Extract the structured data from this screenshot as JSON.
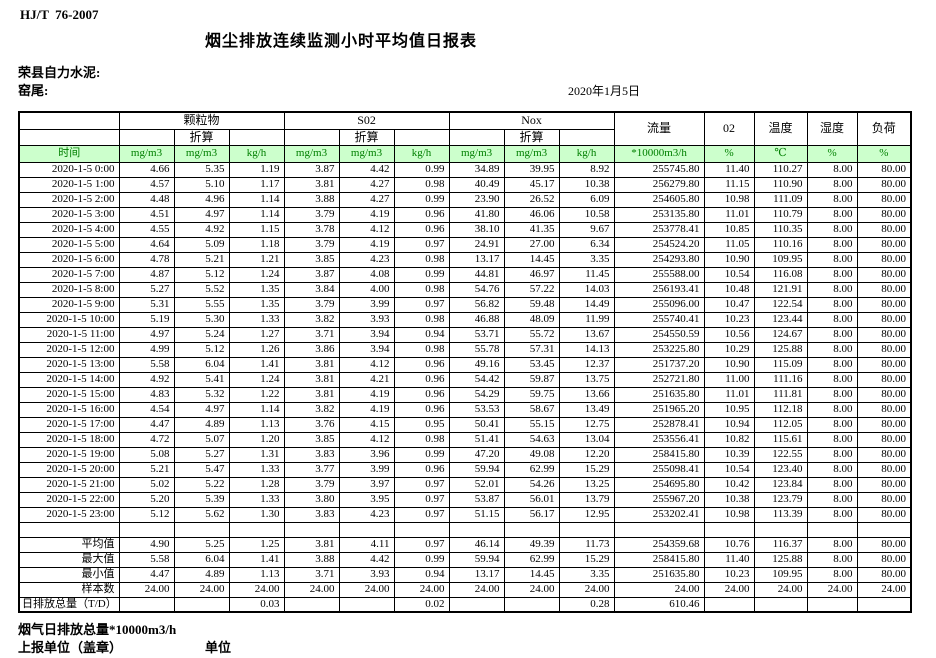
{
  "page": {
    "standard": "HJ/T  76-2007",
    "title": "烟尘排放连续监测小时平均值日报表",
    "company": "荣县自力水泥:",
    "location": "窑尾:",
    "date": "2020年1月5日"
  },
  "colors": {
    "header_bg": "#ccffcc",
    "header_text": "#008000"
  },
  "table": {
    "header": {
      "time_label": "时间",
      "groups": [
        {
          "label": "颗粒物",
          "sub": "折算",
          "units": [
            "mg/m3",
            "mg/m3",
            "kg/h"
          ]
        },
        {
          "label": "S02",
          "sub": "折算",
          "units": [
            "mg/m3",
            "mg/m3",
            "kg/h"
          ]
        },
        {
          "label": "Nox",
          "sub": "折算",
          "units": [
            "mg/m3",
            "mg/m3",
            "kg/h"
          ]
        }
      ],
      "singles": [
        {
          "label": "流量",
          "unit": "*10000m3/h"
        },
        {
          "label": "02",
          "unit": "%"
        },
        {
          "label": "温度",
          "unit": "℃"
        },
        {
          "label": "湿度",
          "unit": "%"
        },
        {
          "label": "负荷",
          "unit": "%"
        }
      ]
    },
    "rows": [
      {
        "time": "2020-1-5 0:00",
        "values": [
          "4.66",
          "5.35",
          "1.19",
          "3.87",
          "4.42",
          "0.99",
          "34.89",
          "39.95",
          "8.92",
          "255745.80",
          "11.40",
          "110.27",
          "8.00",
          "80.00"
        ]
      },
      {
        "time": "2020-1-5 1:00",
        "values": [
          "4.57",
          "5.10",
          "1.17",
          "3.81",
          "4.27",
          "0.98",
          "40.49",
          "45.17",
          "10.38",
          "256279.80",
          "11.15",
          "110.90",
          "8.00",
          "80.00"
        ]
      },
      {
        "time": "2020-1-5 2:00",
        "values": [
          "4.48",
          "4.96",
          "1.14",
          "3.88",
          "4.27",
          "0.99",
          "23.90",
          "26.52",
          "6.09",
          "254605.80",
          "10.98",
          "111.09",
          "8.00",
          "80.00"
        ]
      },
      {
        "time": "2020-1-5 3:00",
        "values": [
          "4.51",
          "4.97",
          "1.14",
          "3.79",
          "4.19",
          "0.96",
          "41.80",
          "46.06",
          "10.58",
          "253135.80",
          "11.01",
          "110.79",
          "8.00",
          "80.00"
        ]
      },
      {
        "time": "2020-1-5 4:00",
        "values": [
          "4.55",
          "4.92",
          "1.15",
          "3.78",
          "4.12",
          "0.96",
          "38.10",
          "41.35",
          "9.67",
          "253778.41",
          "10.85",
          "110.35",
          "8.00",
          "80.00"
        ]
      },
      {
        "time": "2020-1-5 5:00",
        "values": [
          "4.64",
          "5.09",
          "1.18",
          "3.79",
          "4.19",
          "0.97",
          "24.91",
          "27.00",
          "6.34",
          "254524.20",
          "11.05",
          "110.16",
          "8.00",
          "80.00"
        ]
      },
      {
        "time": "2020-1-5 6:00",
        "values": [
          "4.78",
          "5.21",
          "1.21",
          "3.85",
          "4.23",
          "0.98",
          "13.17",
          "14.45",
          "3.35",
          "254293.80",
          "10.90",
          "109.95",
          "8.00",
          "80.00"
        ]
      },
      {
        "time": "2020-1-5 7:00",
        "values": [
          "4.87",
          "5.12",
          "1.24",
          "3.87",
          "4.08",
          "0.99",
          "44.81",
          "46.97",
          "11.45",
          "255588.00",
          "10.54",
          "116.08",
          "8.00",
          "80.00"
        ]
      },
      {
        "time": "2020-1-5 8:00",
        "values": [
          "5.27",
          "5.52",
          "1.35",
          "3.84",
          "4.00",
          "0.98",
          "54.76",
          "57.22",
          "14.03",
          "256193.41",
          "10.48",
          "121.91",
          "8.00",
          "80.00"
        ]
      },
      {
        "time": "2020-1-5 9:00",
        "values": [
          "5.31",
          "5.55",
          "1.35",
          "3.79",
          "3.99",
          "0.97",
          "56.82",
          "59.48",
          "14.49",
          "255096.00",
          "10.47",
          "122.54",
          "8.00",
          "80.00"
        ]
      },
      {
        "time": "2020-1-5 10:00",
        "values": [
          "5.19",
          "5.30",
          "1.33",
          "3.82",
          "3.93",
          "0.98",
          "46.88",
          "48.09",
          "11.99",
          "255740.41",
          "10.23",
          "123.44",
          "8.00",
          "80.00"
        ]
      },
      {
        "time": "2020-1-5 11:00",
        "values": [
          "4.97",
          "5.24",
          "1.27",
          "3.71",
          "3.94",
          "0.94",
          "53.71",
          "55.72",
          "13.67",
          "254550.59",
          "10.56",
          "124.67",
          "8.00",
          "80.00"
        ]
      },
      {
        "time": "2020-1-5 12:00",
        "values": [
          "4.99",
          "5.12",
          "1.26",
          "3.86",
          "3.94",
          "0.98",
          "55.78",
          "57.31",
          "14.13",
          "253225.80",
          "10.29",
          "125.88",
          "8.00",
          "80.00"
        ]
      },
      {
        "time": "2020-1-5 13:00",
        "values": [
          "5.58",
          "6.04",
          "1.41",
          "3.81",
          "4.12",
          "0.96",
          "49.16",
          "53.45",
          "12.37",
          "251737.20",
          "10.90",
          "115.09",
          "8.00",
          "80.00"
        ]
      },
      {
        "time": "2020-1-5 14:00",
        "values": [
          "4.92",
          "5.41",
          "1.24",
          "3.81",
          "4.21",
          "0.96",
          "54.42",
          "59.87",
          "13.75",
          "252721.80",
          "11.00",
          "111.16",
          "8.00",
          "80.00"
        ]
      },
      {
        "time": "2020-1-5 15:00",
        "values": [
          "4.83",
          "5.32",
          "1.22",
          "3.81",
          "4.19",
          "0.96",
          "54.29",
          "59.75",
          "13.66",
          "251635.80",
          "11.01",
          "111.81",
          "8.00",
          "80.00"
        ]
      },
      {
        "time": "2020-1-5 16:00",
        "values": [
          "4.54",
          "4.97",
          "1.14",
          "3.82",
          "4.19",
          "0.96",
          "53.53",
          "58.67",
          "13.49",
          "251965.20",
          "10.95",
          "112.18",
          "8.00",
          "80.00"
        ]
      },
      {
        "time": "2020-1-5 17:00",
        "values": [
          "4.47",
          "4.89",
          "1.13",
          "3.76",
          "4.15",
          "0.95",
          "50.41",
          "55.15",
          "12.75",
          "252878.41",
          "10.94",
          "112.05",
          "8.00",
          "80.00"
        ]
      },
      {
        "time": "2020-1-5 18:00",
        "values": [
          "4.72",
          "5.07",
          "1.20",
          "3.85",
          "4.12",
          "0.98",
          "51.41",
          "54.63",
          "13.04",
          "253556.41",
          "10.82",
          "115.61",
          "8.00",
          "80.00"
        ]
      },
      {
        "time": "2020-1-5 19:00",
        "values": [
          "5.08",
          "5.27",
          "1.31",
          "3.83",
          "3.96",
          "0.99",
          "47.20",
          "49.08",
          "12.20",
          "258415.80",
          "10.39",
          "122.55",
          "8.00",
          "80.00"
        ]
      },
      {
        "time": "2020-1-5 20:00",
        "values": [
          "5.21",
          "5.47",
          "1.33",
          "3.77",
          "3.99",
          "0.96",
          "59.94",
          "62.99",
          "15.29",
          "255098.41",
          "10.54",
          "123.40",
          "8.00",
          "80.00"
        ]
      },
      {
        "time": "2020-1-5 21:00",
        "values": [
          "5.02",
          "5.22",
          "1.28",
          "3.79",
          "3.97",
          "0.97",
          "52.01",
          "54.26",
          "13.25",
          "254695.80",
          "10.42",
          "123.84",
          "8.00",
          "80.00"
        ]
      },
      {
        "time": "2020-1-5 22:00",
        "values": [
          "5.20",
          "5.39",
          "1.33",
          "3.80",
          "3.95",
          "0.97",
          "53.87",
          "56.01",
          "13.79",
          "255967.20",
          "10.38",
          "123.79",
          "8.00",
          "80.00"
        ]
      },
      {
        "time": "2020-1-5 23:00",
        "values": [
          "5.12",
          "5.62",
          "1.30",
          "3.83",
          "4.23",
          "0.97",
          "51.15",
          "56.17",
          "12.95",
          "253202.41",
          "10.98",
          "113.39",
          "8.00",
          "80.00"
        ]
      }
    ],
    "summary_rows": [
      {
        "label": "平均值",
        "values": [
          "4.90",
          "5.25",
          "1.25",
          "3.81",
          "4.11",
          "0.97",
          "46.14",
          "49.39",
          "11.73",
          "254359.68",
          "10.76",
          "116.37",
          "8.00",
          "80.00"
        ]
      },
      {
        "label": "最大值",
        "values": [
          "5.58",
          "6.04",
          "1.41",
          "3.88",
          "4.42",
          "0.99",
          "59.94",
          "62.99",
          "15.29",
          "258415.80",
          "11.40",
          "125.88",
          "8.00",
          "80.00"
        ]
      },
      {
        "label": "最小值",
        "values": [
          "4.47",
          "4.89",
          "1.13",
          "3.71",
          "3.93",
          "0.94",
          "13.17",
          "14.45",
          "3.35",
          "251635.80",
          "10.23",
          "109.95",
          "8.00",
          "80.00"
        ]
      },
      {
        "label": "样本数",
        "values": [
          "24.00",
          "24.00",
          "24.00",
          "24.00",
          "24.00",
          "24.00",
          "24.00",
          "24.00",
          "24.00",
          "24.00",
          "24.00",
          "24.00",
          "24.00",
          "24.00"
        ]
      },
      {
        "label": "日排放总量（T/D）",
        "left_align": true,
        "values": [
          "",
          "",
          "0.03",
          "",
          "",
          "0.02",
          "",
          "",
          "0.28",
          "610.46",
          "",
          "",
          "",
          ""
        ]
      }
    ]
  },
  "footer": {
    "note": "烟气日排放总量*10000m3/h",
    "stamp": "上报单位（盖章）",
    "unit": "单位"
  }
}
